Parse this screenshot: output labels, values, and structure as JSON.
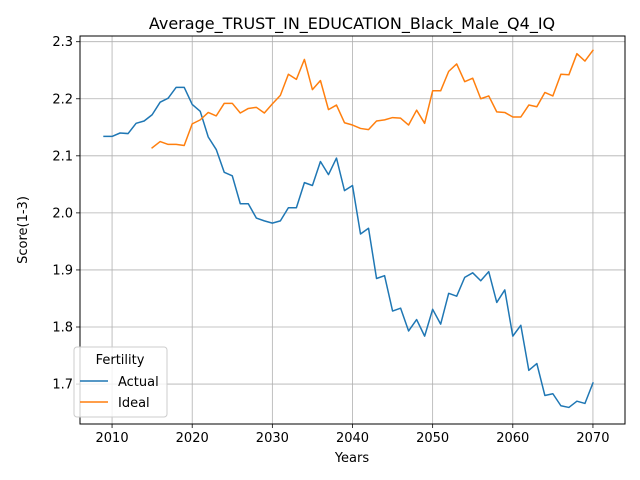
{
  "chart_data": {
    "type": "line",
    "title": "Average_TRUST_IN_EDUCATION_Black_Male_Q4_IQ",
    "xlabel": "Years",
    "ylabel": "Score(1-3)",
    "xlim": [
      2006,
      2074
    ],
    "ylim": [
      1.63,
      2.31
    ],
    "grid": true,
    "x_ticks": [
      2010,
      2020,
      2030,
      2040,
      2050,
      2060,
      2070
    ],
    "y_ticks": [
      1.7,
      1.8,
      1.9,
      2.0,
      2.1,
      2.2,
      2.3
    ],
    "x_tick_labels": [
      "2010",
      "2020",
      "2030",
      "2040",
      "2050",
      "2060",
      "2070"
    ],
    "y_tick_labels": [
      "1.7",
      "1.8",
      "1.9",
      "2.0",
      "2.1",
      "2.2",
      "2.3"
    ],
    "legend": {
      "title": "Fertility",
      "placement": "lower-left"
    },
    "series": [
      {
        "name": "Actual",
        "color": "#1f77b4",
        "x": [
          2009,
          2010,
          2011,
          2012,
          2013,
          2014,
          2015,
          2016,
          2017,
          2018,
          2019,
          2020,
          2021,
          2022,
          2023,
          2024,
          2025,
          2026,
          2027,
          2028,
          2029,
          2030,
          2031,
          2032,
          2033,
          2034,
          2035,
          2036,
          2037,
          2038,
          2039,
          2040,
          2041,
          2042,
          2043,
          2044,
          2045,
          2046,
          2047,
          2048,
          2049,
          2050,
          2051,
          2052,
          2053,
          2054,
          2055,
          2056,
          2057,
          2058,
          2059,
          2060,
          2061,
          2062,
          2063,
          2064,
          2065,
          2066,
          2067,
          2068,
          2069,
          2070
        ],
        "y": [
          2.134,
          2.134,
          2.14,
          2.139,
          2.157,
          2.161,
          2.172,
          2.194,
          2.201,
          2.22,
          2.22,
          2.19,
          2.178,
          2.133,
          2.111,
          2.071,
          2.065,
          2.016,
          2.016,
          1.991,
          1.986,
          1.982,
          1.986,
          2.009,
          2.009,
          2.053,
          2.048,
          2.09,
          2.067,
          2.096,
          2.039,
          2.048,
          1.963,
          1.973,
          1.885,
          1.89,
          1.828,
          1.833,
          1.793,
          1.813,
          1.784,
          1.831,
          1.805,
          1.859,
          1.854,
          1.887,
          1.895,
          1.881,
          1.897,
          1.843,
          1.865,
          1.784,
          1.803,
          1.724,
          1.736,
          1.68,
          1.683,
          1.662,
          1.659,
          1.67,
          1.666,
          1.702
        ]
      },
      {
        "name": "Ideal",
        "color": "#ff7f0e",
        "x": [
          2015,
          2016,
          2017,
          2018,
          2019,
          2020,
          2021,
          2022,
          2023,
          2024,
          2025,
          2026,
          2027,
          2028,
          2029,
          2030,
          2031,
          2032,
          2033,
          2034,
          2035,
          2036,
          2037,
          2038,
          2039,
          2040,
          2041,
          2042,
          2043,
          2044,
          2045,
          2046,
          2047,
          2048,
          2049,
          2050,
          2051,
          2052,
          2053,
          2054,
          2055,
          2056,
          2057,
          2058,
          2059,
          2060,
          2061,
          2062,
          2063,
          2064,
          2065,
          2066,
          2067,
          2068,
          2069,
          2070
        ],
        "y": [
          2.114,
          2.125,
          2.12,
          2.12,
          2.118,
          2.156,
          2.163,
          2.176,
          2.17,
          2.192,
          2.192,
          2.175,
          2.183,
          2.185,
          2.175,
          2.191,
          2.206,
          2.243,
          2.234,
          2.269,
          2.216,
          2.232,
          2.181,
          2.189,
          2.158,
          2.154,
          2.148,
          2.146,
          2.161,
          2.163,
          2.167,
          2.166,
          2.154,
          2.18,
          2.157,
          2.214,
          2.214,
          2.248,
          2.261,
          2.23,
          2.236,
          2.2,
          2.205,
          2.177,
          2.176,
          2.168,
          2.168,
          2.189,
          2.186,
          2.211,
          2.205,
          2.243,
          2.242,
          2.279,
          2.266,
          2.285
        ]
      }
    ]
  }
}
